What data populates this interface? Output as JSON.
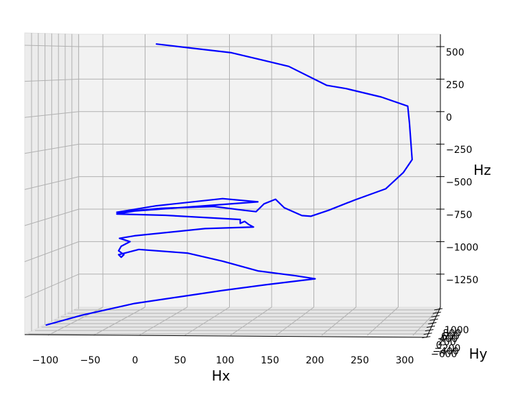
{
  "chart_data": {
    "type": "line3d",
    "xlabel": "Hx",
    "ylabel": "Hy",
    "zlabel": "Hz",
    "x_ticks": [
      "−100",
      "−50",
      "0",
      "50",
      "100",
      "150",
      "200",
      "250",
      "300"
    ],
    "z_ticks": [
      "500",
      "250",
      "0",
      "−250",
      "−500",
      "−750",
      "−1000",
      "−1250"
    ],
    "y_ticks": [
      "1000",
      "800",
      "600",
      "400",
      "200",
      "0",
      "−200",
      "−400",
      "−600"
    ],
    "grid": true,
    "colors": {
      "line": "#0000ff",
      "pane": "#f2f2f2",
      "grid": "#b0b0b0"
    },
    "series": [
      {
        "points": [
          {
            "x": 25,
            "z": 557
          },
          {
            "x": 110,
            "z": 490
          },
          {
            "x": 175,
            "z": 385
          },
          {
            "x": 218,
            "z": 240
          },
          {
            "x": 240,
            "z": 215
          },
          {
            "x": 280,
            "z": 150
          },
          {
            "x": 310,
            "z": 80
          },
          {
            "x": 312,
            "z": -50
          },
          {
            "x": 315,
            "z": -330
          },
          {
            "x": 305,
            "z": -430
          },
          {
            "x": 285,
            "z": -555
          },
          {
            "x": 250,
            "z": -640
          },
          {
            "x": 220,
            "z": -720
          },
          {
            "x": 200,
            "z": -765
          },
          {
            "x": 190,
            "z": -760
          },
          {
            "x": 170,
            "z": -700
          },
          {
            "x": 160,
            "z": -635
          },
          {
            "x": 147,
            "z": -670
          },
          {
            "x": 138,
            "z": -730
          },
          {
            "x": 125,
            "z": -720
          },
          {
            "x": 90,
            "z": -690
          },
          {
            "x": 30,
            "z": -705
          },
          {
            "x": -20,
            "z": -735
          },
          {
            "x": 25,
            "z": -685
          },
          {
            "x": 100,
            "z": -630
          },
          {
            "x": 140,
            "z": -655
          },
          {
            "x": 80,
            "z": -685
          },
          {
            "x": 0,
            "z": -725
          },
          {
            "x": -20,
            "z": -748
          },
          {
            "x": 35,
            "z": -758
          },
          {
            "x": 120,
            "z": -790
          },
          {
            "x": 120,
            "z": -820
          },
          {
            "x": 125,
            "z": -805
          },
          {
            "x": 130,
            "z": -830
          },
          {
            "x": 135,
            "z": -848
          },
          {
            "x": 80,
            "z": -860
          },
          {
            "x": 0,
            "z": -915
          },
          {
            "x": -17,
            "z": -935
          },
          {
            "x": -5,
            "z": -960
          },
          {
            "x": -15,
            "z": -995
          },
          {
            "x": -18,
            "z": -1030
          },
          {
            "x": -12,
            "z": -1060
          },
          {
            "x": -15,
            "z": -1080
          },
          {
            "x": -18,
            "z": -1060
          },
          {
            "x": 5,
            "z": -1020
          },
          {
            "x": 60,
            "z": -1048
          },
          {
            "x": 100,
            "z": -1110
          },
          {
            "x": 140,
            "z": -1185
          },
          {
            "x": 183,
            "z": -1222
          },
          {
            "x": 205,
            "z": -1245
          },
          {
            "x": 150,
            "z": -1290
          },
          {
            "x": 100,
            "z": -1335
          },
          {
            "x": 50,
            "z": -1385
          },
          {
            "x": 0,
            "z": -1435
          },
          {
            "x": -60,
            "z": -1525
          },
          {
            "x": -100,
            "z": -1600
          }
        ]
      }
    ]
  }
}
